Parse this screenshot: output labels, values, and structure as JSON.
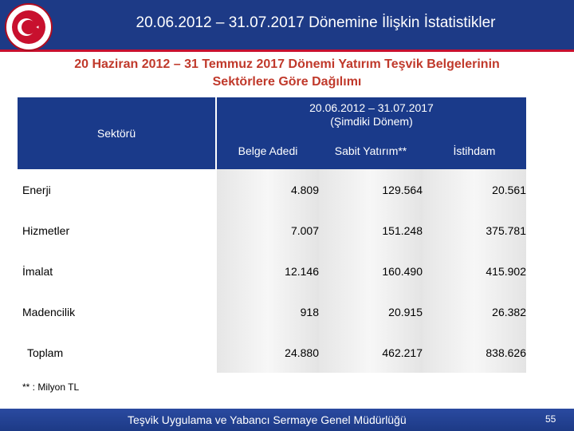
{
  "header": {
    "title": "20.06.2012 – 31.07.2017 Dönemine İlişkin İstatistikler"
  },
  "subtitle": {
    "line1": "20 Haziran 2012 – 31 Temmuz 2017 Dönemi Yatırım Teşvik Belgelerinin",
    "line2": "Sektörlere Göre Dağılımı"
  },
  "table": {
    "sector_header": "Sektörü",
    "period_header_line1": "20.06.2012 – 31.07.2017",
    "period_header_line2": "(Şimdiki Dönem)",
    "columns": [
      "Belge Adedi",
      "Sabit Yatırım**",
      "İstihdam"
    ],
    "rows": [
      {
        "label": "Enerji",
        "values": [
          "4.809",
          "129.564",
          "20.561"
        ]
      },
      {
        "label": "Hizmetler",
        "values": [
          "7.007",
          "151.248",
          "375.781"
        ]
      },
      {
        "label": "İmalat",
        "values": [
          "12.146",
          "160.490",
          "415.902"
        ]
      },
      {
        "label": "Madencilik",
        "values": [
          "918",
          "20.915",
          "26.382"
        ]
      },
      {
        "label": "Toplam",
        "values": [
          "24.880",
          "462.217",
          "838.626"
        ]
      }
    ]
  },
  "footnote": "** : Milyon TL",
  "footer": {
    "org": "Teşvik Uygulama ve Yabancı Sermaye Genel Müdürlüğü",
    "page": "55"
  },
  "colors": {
    "header_blue": "#1d3a86",
    "table_header_blue": "#1a3a8a",
    "title_red": "#c0392b"
  },
  "icons": {
    "logo": "ministry-emblem-icon"
  }
}
